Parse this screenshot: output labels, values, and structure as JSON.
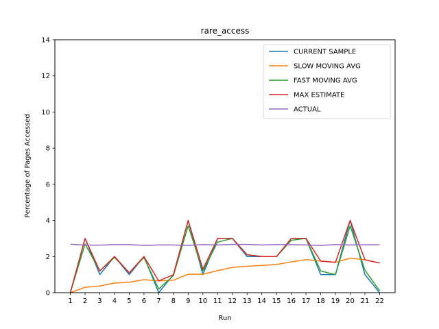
{
  "chart_data": {
    "type": "line",
    "title": "rare_access",
    "xlabel": "Run",
    "ylabel": "Percentage of Pages Accessed",
    "x": [
      1,
      2,
      3,
      4,
      5,
      6,
      7,
      8,
      9,
      10,
      11,
      12,
      13,
      14,
      15,
      16,
      17,
      18,
      19,
      20,
      21,
      22
    ],
    "ylim": [
      0,
      14
    ],
    "yticks": [
      0,
      2,
      4,
      6,
      8,
      10,
      12,
      14
    ],
    "grid": false,
    "legend_position": "top-right",
    "series": [
      {
        "name": "CURRENT SAMPLE",
        "color": "#1f77b4",
        "values": [
          0,
          3,
          1,
          2,
          1,
          2,
          0,
          1,
          4,
          1,
          3,
          3,
          2,
          2,
          2,
          3,
          3,
          1,
          1,
          4,
          1,
          0
        ]
      },
      {
        "name": "SLOW MOVING AVG",
        "color": "#ff7f0e",
        "values": [
          0,
          0.3,
          0.37,
          0.53,
          0.58,
          0.72,
          0.65,
          0.69,
          1.02,
          1.02,
          1.22,
          1.4,
          1.46,
          1.51,
          1.56,
          1.7,
          1.83,
          1.75,
          1.68,
          1.91,
          1.82,
          1.64
        ]
      },
      {
        "name": "FAST MOVING AVG",
        "color": "#2ca02c",
        "values": [
          0,
          2.7,
          1.2,
          1.95,
          1.1,
          1.95,
          0.2,
          0.95,
          3.7,
          1.2,
          2.8,
          3.0,
          2.1,
          2.0,
          2.0,
          2.9,
          3.0,
          1.2,
          1.0,
          3.7,
          1.25,
          0.1
        ]
      },
      {
        "name": "MAX ESTIMATE",
        "color": "#d62728",
        "values": [
          0,
          3,
          1.2,
          2,
          1.1,
          2,
          0.65,
          1.0,
          4,
          1.3,
          3,
          3,
          2.1,
          2,
          2,
          3,
          3,
          1.75,
          1.68,
          4,
          1.82,
          1.64
        ]
      },
      {
        "name": "ACTUAL",
        "color": "#9467bd",
        "values": [
          2.68,
          2.63,
          2.63,
          2.66,
          2.66,
          2.62,
          2.64,
          2.64,
          2.62,
          2.66,
          2.64,
          2.67,
          2.67,
          2.64,
          2.66,
          2.66,
          2.64,
          2.62,
          2.66,
          2.64,
          2.65,
          2.65
        ]
      }
    ]
  }
}
